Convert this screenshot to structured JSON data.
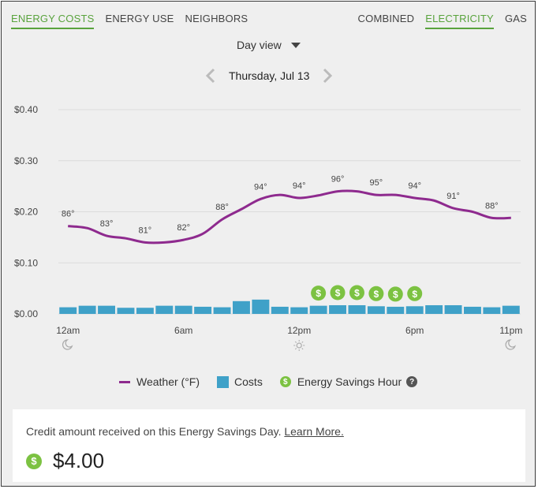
{
  "tabs_left": [
    {
      "label": "ENERGY COSTS",
      "active": true
    },
    {
      "label": "ENERGY USE",
      "active": false
    },
    {
      "label": "NEIGHBORS",
      "active": false
    }
  ],
  "tabs_right": [
    {
      "label": "COMBINED",
      "active": false
    },
    {
      "label": "ELECTRICITY",
      "active": true
    },
    {
      "label": "GAS",
      "active": false
    }
  ],
  "view_select": "Day view",
  "date": "Thursday, Jul 13",
  "colors": {
    "accent": "#59a33d",
    "weather": "#8e2a8e",
    "bars": "#3fa1c8",
    "coin": "#7cc242"
  },
  "chart_data": {
    "type": "bar",
    "ylim": [
      0,
      0.4
    ],
    "y_ticks": [
      "$0.00",
      "$0.10",
      "$0.20",
      "$0.30",
      "$0.40"
    ],
    "x_tick_labels": [
      {
        "label": "12am",
        "hour": 0,
        "icon": "moon-icon"
      },
      {
        "label": "6am",
        "hour": 6,
        "icon": ""
      },
      {
        "label": "12pm",
        "hour": 12,
        "icon": "sun-icon"
      },
      {
        "label": "6pm",
        "hour": 18,
        "icon": ""
      },
      {
        "label": "11pm",
        "hour": 23,
        "icon": "moon-icon"
      }
    ],
    "hours": [
      0,
      1,
      2,
      3,
      4,
      5,
      6,
      7,
      8,
      9,
      10,
      11,
      12,
      13,
      14,
      15,
      16,
      17,
      18,
      19,
      20,
      21,
      22,
      23
    ],
    "series": [
      {
        "name": "Costs",
        "values": [
          0.013,
          0.016,
          0.016,
          0.012,
          0.012,
          0.016,
          0.016,
          0.014,
          0.013,
          0.025,
          0.028,
          0.014,
          0.013,
          0.016,
          0.017,
          0.017,
          0.015,
          0.014,
          0.015,
          0.017,
          0.017,
          0.014,
          0.013,
          0.016
        ]
      },
      {
        "name": "Weather (°F)",
        "values": [
          0.172,
          0.168,
          0.153,
          0.148,
          0.14,
          0.14,
          0.145,
          0.157,
          0.185,
          0.205,
          0.225,
          0.233,
          0.227,
          0.232,
          0.24,
          0.24,
          0.233,
          0.233,
          0.227,
          0.222,
          0.207,
          0.2,
          0.188,
          0.188
        ]
      }
    ],
    "temperature_labels": [
      {
        "hour": 0,
        "label": "86°"
      },
      {
        "hour": 2,
        "label": "83°"
      },
      {
        "hour": 4,
        "label": "81°"
      },
      {
        "hour": 6,
        "label": "82°"
      },
      {
        "hour": 8,
        "label": "88°"
      },
      {
        "hour": 10,
        "label": "94°"
      },
      {
        "hour": 12,
        "label": "94°"
      },
      {
        "hour": 14,
        "label": "96°"
      },
      {
        "hour": 16,
        "label": "95°"
      },
      {
        "hour": 18,
        "label": "94°"
      },
      {
        "hour": 20,
        "label": "91°"
      },
      {
        "hour": 22,
        "label": "88°"
      }
    ],
    "energy_savings_hours": [
      13,
      14,
      15,
      16,
      17,
      18
    ],
    "coin_symbol": "$"
  },
  "legend": {
    "weather": "Weather (°F)",
    "costs": "Costs",
    "savings": "Energy Savings Hour",
    "help": "?"
  },
  "credit": {
    "text": "Credit amount received on this Energy Savings Day.",
    "link": "Learn More.",
    "coin": "$",
    "amount": "$4.00"
  }
}
